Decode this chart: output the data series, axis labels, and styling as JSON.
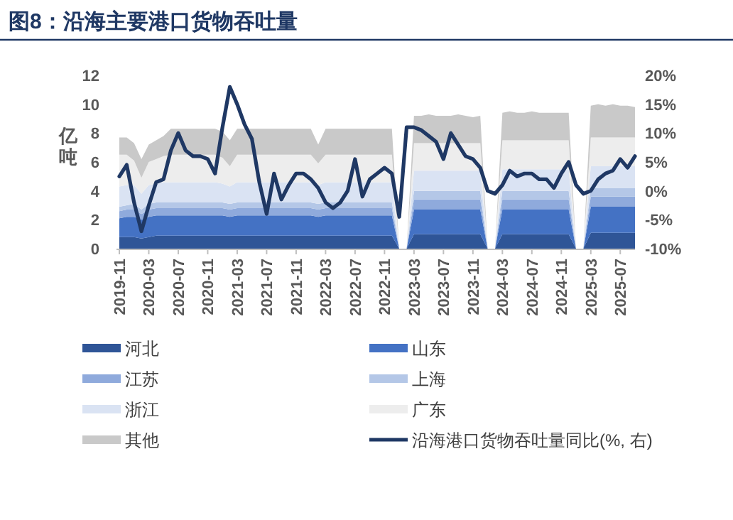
{
  "chart_data": {
    "type": "area",
    "stacked": true,
    "title": "图8：沿海主要港口货物吞吐量",
    "ylabel": "亿吨",
    "legend": "bottom",
    "x": [
      "2019-11",
      "2019-12",
      "2020-01",
      "2020-02",
      "2020-03",
      "2020-04",
      "2020-05",
      "2020-06",
      "2020-07",
      "2020-08",
      "2020-09",
      "2020-10",
      "2020-11",
      "2020-12",
      "2021-01",
      "2021-02",
      "2021-03",
      "2021-04",
      "2021-05",
      "2021-06",
      "2021-07",
      "2021-08",
      "2021-09",
      "2021-10",
      "2021-11",
      "2021-12",
      "2022-01",
      "2022-02",
      "2022-03",
      "2022-04",
      "2022-05",
      "2022-06",
      "2022-07",
      "2022-08",
      "2022-09",
      "2022-10",
      "2022-11",
      "2022-12",
      "2023-01",
      "2023-02",
      "2023-03",
      "2023-04",
      "2023-05",
      "2023-06",
      "2023-07",
      "2023-08",
      "2023-09",
      "2023-10",
      "2023-11",
      "2023-12",
      "2024-01",
      "2024-02",
      "2024-03",
      "2024-04",
      "2024-05",
      "2024-06",
      "2024-07",
      "2024-08",
      "2024-09",
      "2024-10",
      "2024-11",
      "2024-12",
      "2025-01",
      "2025-02",
      "2025-03",
      "2025-04",
      "2025-05",
      "2025-06",
      "2025-07",
      "2025-08",
      "2025-09"
    ],
    "xlim": [
      "2019-11",
      "2025-09"
    ],
    "xticks": [
      "2019-11",
      "2020-03",
      "2020-07",
      "2020-11",
      "2021-03",
      "2021-07",
      "2021-11",
      "2022-03",
      "2022-07",
      "2022-11",
      "2023-03",
      "2023-07",
      "2023-11",
      "2024-03",
      "2024-07",
      "2024-11",
      "2025-03",
      "2025-07"
    ],
    "ylim": [
      0,
      12
    ],
    "yticks": [
      0,
      2,
      4,
      6,
      8,
      10,
      12
    ],
    "y2lim": [
      -10,
      20
    ],
    "y2ticks": [
      {
        "value": -10,
        "label": "-10%"
      },
      {
        "value": -5,
        "label": "-5%"
      },
      {
        "value": 0,
        "label": "0%"
      },
      {
        "value": 5,
        "label": "5%"
      },
      {
        "value": 10,
        "label": "10%"
      },
      {
        "value": 15,
        "label": "15%"
      },
      {
        "value": 20,
        "label": "20%"
      }
    ],
    "series": [
      {
        "name": "河北",
        "color": "#2f5597",
        "values": [
          0.8,
          0.8,
          0.8,
          0.7,
          0.8,
          0.9,
          0.9,
          0.9,
          0.9,
          0.9,
          0.9,
          0.9,
          0.9,
          0.9,
          0.9,
          0.9,
          0.9,
          0.9,
          0.9,
          0.9,
          0.9,
          0.9,
          0.9,
          0.9,
          0.9,
          0.9,
          0.9,
          0.9,
          0.9,
          0.9,
          0.9,
          0.9,
          0.9,
          0.9,
          0.9,
          0.9,
          0.9,
          0.9,
          null,
          null,
          1.0,
          1.0,
          1.0,
          1.0,
          1.0,
          1.0,
          1.0,
          1.0,
          1.0,
          1.0,
          null,
          null,
          1.0,
          1.0,
          1.0,
          1.0,
          1.0,
          1.0,
          1.0,
          1.0,
          1.0,
          1.0,
          null,
          null,
          1.1,
          1.1,
          1.1,
          1.1,
          1.1,
          1.1,
          1.1
        ]
      },
      {
        "name": "山东",
        "color": "#4472c4",
        "values": [
          1.3,
          1.4,
          1.4,
          1.3,
          1.4,
          1.4,
          1.4,
          1.4,
          1.4,
          1.4,
          1.4,
          1.4,
          1.4,
          1.4,
          1.4,
          1.3,
          1.4,
          1.4,
          1.4,
          1.4,
          1.4,
          1.4,
          1.4,
          1.4,
          1.4,
          1.4,
          1.4,
          1.3,
          1.4,
          1.4,
          1.4,
          1.4,
          1.4,
          1.4,
          1.4,
          1.4,
          1.4,
          1.4,
          null,
          null,
          1.7,
          1.7,
          1.7,
          1.7,
          1.7,
          1.7,
          1.7,
          1.7,
          1.7,
          1.7,
          null,
          null,
          1.7,
          1.7,
          1.7,
          1.7,
          1.7,
          1.7,
          1.7,
          1.7,
          1.7,
          1.7,
          null,
          null,
          1.8,
          1.8,
          1.8,
          1.8,
          1.8,
          1.8,
          1.8
        ]
      },
      {
        "name": "江苏",
        "color": "#8faadc",
        "values": [
          0.5,
          0.5,
          0.5,
          0.4,
          0.5,
          0.5,
          0.5,
          0.5,
          0.5,
          0.5,
          0.5,
          0.5,
          0.5,
          0.5,
          0.5,
          0.5,
          0.5,
          0.5,
          0.5,
          0.5,
          0.5,
          0.5,
          0.5,
          0.5,
          0.5,
          0.5,
          0.5,
          0.5,
          0.5,
          0.5,
          0.5,
          0.5,
          0.5,
          0.5,
          0.5,
          0.5,
          0.5,
          0.5,
          null,
          null,
          0.7,
          0.7,
          0.7,
          0.7,
          0.7,
          0.7,
          0.7,
          0.7,
          0.7,
          0.7,
          null,
          null,
          0.7,
          0.7,
          0.7,
          0.7,
          0.7,
          0.7,
          0.7,
          0.7,
          0.7,
          0.7,
          null,
          null,
          0.7,
          0.7,
          0.7,
          0.7,
          0.7,
          0.7,
          0.7
        ]
      },
      {
        "name": "上海",
        "color": "#b4c7e7",
        "values": [
          0.3,
          0.3,
          0.4,
          0.3,
          0.4,
          0.4,
          0.4,
          0.4,
          0.4,
          0.4,
          0.4,
          0.4,
          0.4,
          0.4,
          0.4,
          0.4,
          0.4,
          0.4,
          0.4,
          0.4,
          0.4,
          0.4,
          0.4,
          0.4,
          0.4,
          0.4,
          0.4,
          0.4,
          0.4,
          0.4,
          0.4,
          0.4,
          0.4,
          0.4,
          0.4,
          0.4,
          0.4,
          0.4,
          null,
          null,
          0.6,
          0.6,
          0.6,
          0.6,
          0.6,
          0.6,
          0.6,
          0.6,
          0.6,
          0.6,
          null,
          null,
          0.6,
          0.6,
          0.6,
          0.6,
          0.6,
          0.6,
          0.6,
          0.6,
          0.6,
          0.6,
          null,
          null,
          0.6,
          0.6,
          0.6,
          0.6,
          0.6,
          0.6,
          0.6
        ]
      },
      {
        "name": "浙江",
        "color": "#dae3f3",
        "values": [
          1.4,
          1.4,
          1.3,
          1.1,
          1.3,
          1.3,
          1.4,
          1.4,
          1.4,
          1.4,
          1.4,
          1.4,
          1.4,
          1.4,
          1.3,
          1.2,
          1.4,
          1.4,
          1.4,
          1.4,
          1.4,
          1.4,
          1.4,
          1.4,
          1.4,
          1.4,
          1.4,
          1.3,
          1.4,
          1.4,
          1.4,
          1.4,
          1.4,
          1.4,
          1.4,
          1.4,
          1.4,
          1.4,
          null,
          null,
          1.4,
          1.4,
          1.4,
          1.4,
          1.4,
          1.4,
          1.4,
          1.4,
          1.4,
          1.4,
          null,
          null,
          1.5,
          1.5,
          1.5,
          1.5,
          1.5,
          1.5,
          1.5,
          1.5,
          1.5,
          1.5,
          null,
          null,
          1.5,
          1.5,
          1.5,
          1.5,
          1.5,
          1.5,
          1.5
        ]
      },
      {
        "name": "广东",
        "color": "#ededed",
        "values": [
          2.2,
          2.1,
          1.7,
          1.1,
          1.6,
          1.7,
          1.8,
          1.9,
          1.9,
          1.9,
          1.9,
          1.9,
          1.9,
          1.9,
          1.8,
          1.4,
          1.9,
          1.9,
          1.9,
          1.9,
          1.9,
          1.9,
          1.9,
          1.9,
          1.9,
          1.9,
          1.9,
          1.5,
          1.9,
          1.9,
          1.9,
          1.9,
          1.9,
          1.9,
          1.9,
          1.9,
          1.9,
          1.9,
          null,
          null,
          1.9,
          1.9,
          1.9,
          1.9,
          1.9,
          1.9,
          1.9,
          1.9,
          1.9,
          1.9,
          null,
          null,
          2.0,
          2.0,
          2.0,
          2.0,
          2.0,
          2.0,
          2.0,
          2.0,
          2.0,
          2.0,
          null,
          null,
          2.0,
          2.0,
          2.0,
          2.0,
          2.0,
          2.0,
          2.0
        ]
      },
      {
        "name": "其他",
        "color": "#c9c9c9",
        "values": [
          1.2,
          1.2,
          1.2,
          1.3,
          1.2,
          1.3,
          1.4,
          1.8,
          1.8,
          1.8,
          1.8,
          1.8,
          1.8,
          1.8,
          1.8,
          1.8,
          1.8,
          1.8,
          1.8,
          1.8,
          1.8,
          1.8,
          1.8,
          1.8,
          1.8,
          1.8,
          1.8,
          1.3,
          1.8,
          1.8,
          1.8,
          1.8,
          1.8,
          1.8,
          1.8,
          1.8,
          1.8,
          1.8,
          null,
          null,
          1.9,
          1.9,
          2.0,
          1.9,
          1.9,
          1.9,
          2.0,
          1.9,
          1.8,
          1.9,
          null,
          null,
          1.9,
          2.0,
          1.9,
          1.9,
          2.0,
          1.9,
          1.9,
          1.9,
          1.9,
          1.9,
          null,
          null,
          2.2,
          2.3,
          2.2,
          2.3,
          2.2,
          2.2,
          2.1
        ]
      },
      {
        "name": "沿海港口货物吞吐量同比(%, 右)",
        "type": "line",
        "axis": "y2",
        "color": "#1f3864",
        "values": [
          2.5,
          4.5,
          -2,
          -7,
          -2.5,
          1.5,
          2,
          7,
          10,
          7,
          6,
          6,
          5.5,
          3,
          11,
          18,
          15,
          11.5,
          9,
          1.5,
          -4,
          3,
          -1.5,
          1,
          3,
          3,
          2,
          0.5,
          -2,
          -3,
          -2,
          0,
          5.5,
          -1,
          2,
          3,
          4,
          3,
          -4.5,
          11,
          11,
          10.5,
          9.5,
          8.5,
          5.5,
          10,
          8,
          6,
          5.5,
          4,
          0,
          -0.5,
          1,
          3.5,
          2.5,
          3,
          3,
          2,
          2,
          0.5,
          3,
          5,
          1,
          -0.5,
          0,
          2,
          3,
          3.5,
          5.5,
          4,
          6
        ]
      }
    ]
  }
}
